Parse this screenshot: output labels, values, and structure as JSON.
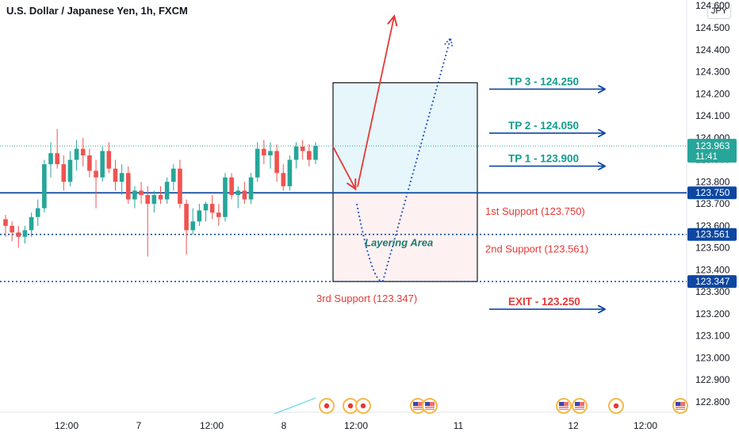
{
  "header": {
    "title": "U.S. Dollar / Japanese Yen, 1h, FXCM",
    "currency_button": "JPY"
  },
  "colors": {
    "bull": "#26a69a",
    "bear": "#ef5350",
    "blue": "#0d47a1",
    "red_text": "#e53935",
    "teal_text": "#139c8f"
  },
  "chart_data": {
    "type": "candlestick",
    "symbol": "USDJPY",
    "timeframe": "1h",
    "ylim": [
      122.75,
      124.6
    ],
    "y_ticks": [
      "124.600",
      "124.500",
      "124.400",
      "124.300",
      "124.200",
      "124.100",
      "124.000",
      "123.900",
      "123.800",
      "123.700",
      "123.600",
      "123.500",
      "123.400",
      "123.300",
      "123.200",
      "123.100",
      "123.000",
      "122.900",
      "122.800"
    ],
    "x_ticks": [
      "12:00",
      "7",
      "12:00",
      "8",
      "12:00",
      "11",
      "12",
      "12:00"
    ],
    "candles": [
      {
        "o": 123.63,
        "h": 123.65,
        "l": 123.55,
        "c": 123.6
      },
      {
        "o": 123.6,
        "h": 123.62,
        "l": 123.53,
        "c": 123.57
      },
      {
        "o": 123.57,
        "h": 123.6,
        "l": 123.5,
        "c": 123.55
      },
      {
        "o": 123.55,
        "h": 123.6,
        "l": 123.52,
        "c": 123.58
      },
      {
        "o": 123.58,
        "h": 123.66,
        "l": 123.55,
        "c": 123.64
      },
      {
        "o": 123.64,
        "h": 123.72,
        "l": 123.6,
        "c": 123.68
      },
      {
        "o": 123.68,
        "h": 123.9,
        "l": 123.66,
        "c": 123.88
      },
      {
        "o": 123.88,
        "h": 123.98,
        "l": 123.82,
        "c": 123.93
      },
      {
        "o": 123.93,
        "h": 124.04,
        "l": 123.86,
        "c": 123.88
      },
      {
        "o": 123.88,
        "h": 123.92,
        "l": 123.76,
        "c": 123.8
      },
      {
        "o": 123.8,
        "h": 123.94,
        "l": 123.78,
        "c": 123.9
      },
      {
        "o": 123.9,
        "h": 123.99,
        "l": 123.85,
        "c": 123.95
      },
      {
        "o": 123.95,
        "h": 124.0,
        "l": 123.87,
        "c": 123.92
      },
      {
        "o": 123.92,
        "h": 123.95,
        "l": 123.82,
        "c": 123.85
      },
      {
        "o": 123.85,
        "h": 123.9,
        "l": 123.68,
        "c": 123.82
      },
      {
        "o": 123.82,
        "h": 123.96,
        "l": 123.8,
        "c": 123.94
      },
      {
        "o": 123.94,
        "h": 123.98,
        "l": 123.84,
        "c": 123.86
      },
      {
        "o": 123.86,
        "h": 123.9,
        "l": 123.76,
        "c": 123.8
      },
      {
        "o": 123.8,
        "h": 123.88,
        "l": 123.74,
        "c": 123.84
      },
      {
        "o": 123.84,
        "h": 123.87,
        "l": 123.7,
        "c": 123.72
      },
      {
        "o": 123.72,
        "h": 123.78,
        "l": 123.68,
        "c": 123.76
      },
      {
        "o": 123.76,
        "h": 123.8,
        "l": 123.7,
        "c": 123.74
      },
      {
        "o": 123.74,
        "h": 123.78,
        "l": 123.46,
        "c": 123.7
      },
      {
        "o": 123.7,
        "h": 123.76,
        "l": 123.66,
        "c": 123.74
      },
      {
        "o": 123.74,
        "h": 123.78,
        "l": 123.7,
        "c": 123.72
      },
      {
        "o": 123.72,
        "h": 123.82,
        "l": 123.7,
        "c": 123.8
      },
      {
        "o": 123.8,
        "h": 123.88,
        "l": 123.76,
        "c": 123.86
      },
      {
        "o": 123.86,
        "h": 123.9,
        "l": 123.68,
        "c": 123.7
      },
      {
        "o": 123.7,
        "h": 123.72,
        "l": 123.47,
        "c": 123.58
      },
      {
        "o": 123.58,
        "h": 123.68,
        "l": 123.56,
        "c": 123.62
      },
      {
        "o": 123.62,
        "h": 123.7,
        "l": 123.6,
        "c": 123.67
      },
      {
        "o": 123.67,
        "h": 123.71,
        "l": 123.62,
        "c": 123.7
      },
      {
        "o": 123.7,
        "h": 123.74,
        "l": 123.63,
        "c": 123.66
      },
      {
        "o": 123.66,
        "h": 123.7,
        "l": 123.6,
        "c": 123.64
      },
      {
        "o": 123.64,
        "h": 123.84,
        "l": 123.62,
        "c": 123.82
      },
      {
        "o": 123.82,
        "h": 123.84,
        "l": 123.72,
        "c": 123.74
      },
      {
        "o": 123.74,
        "h": 123.78,
        "l": 123.68,
        "c": 123.76
      },
      {
        "o": 123.76,
        "h": 123.8,
        "l": 123.7,
        "c": 123.72
      },
      {
        "o": 123.72,
        "h": 123.84,
        "l": 123.7,
        "c": 123.82
      },
      {
        "o": 123.82,
        "h": 123.98,
        "l": 123.8,
        "c": 123.95
      },
      {
        "o": 123.95,
        "h": 123.99,
        "l": 123.88,
        "c": 123.92
      },
      {
        "o": 123.92,
        "h": 123.98,
        "l": 123.86,
        "c": 123.94
      },
      {
        "o": 123.94,
        "h": 123.97,
        "l": 123.8,
        "c": 123.84
      },
      {
        "o": 123.84,
        "h": 123.88,
        "l": 123.76,
        "c": 123.78
      },
      {
        "o": 123.78,
        "h": 123.92,
        "l": 123.76,
        "c": 123.9
      },
      {
        "o": 123.9,
        "h": 123.98,
        "l": 123.86,
        "c": 123.96
      },
      {
        "o": 123.96,
        "h": 123.99,
        "l": 123.9,
        "c": 123.94
      },
      {
        "o": 123.94,
        "h": 123.97,
        "l": 123.87,
        "c": 123.9
      },
      {
        "o": 123.9,
        "h": 123.98,
        "l": 123.88,
        "c": 123.963
      }
    ],
    "levels": [
      {
        "name": "1st Support",
        "price": 123.75,
        "style": "solid",
        "axis_label": "123.750"
      },
      {
        "name": "2nd Support",
        "price": 123.561,
        "style": "dotted",
        "axis_label": "123.561"
      },
      {
        "name": "3rd Support",
        "price": 123.347,
        "style": "dotted",
        "axis_label": "123.347"
      }
    ],
    "current_price": {
      "label": "123.963",
      "countdown": "11:41",
      "value": 123.963
    },
    "zone": {
      "top": 124.25,
      "mid": 123.75,
      "bottom": 123.347
    },
    "annotations": {
      "tp3": "TP 3 - 124.250",
      "tp2": "TP 2 - 124.050",
      "tp1": "TP 1 - 123.900",
      "exit": "EXIT - 123.250",
      "support1": "1st Support (123.750)",
      "support2": "2nd Support (123.561)",
      "support3": "3rd Support (123.347)",
      "layering": "Layering Area"
    },
    "targets": {
      "tp3": 124.25,
      "tp2": 124.05,
      "tp1": 123.9,
      "exit": 123.25
    },
    "red_path": {
      "down_from": 123.96,
      "down_to": 123.77,
      "up_to": 124.55
    },
    "blue_path": {
      "from": 123.7,
      "bottom": 123.35,
      "to": 124.45
    },
    "event_icons": [
      "jp",
      "jp",
      "jp",
      "us",
      "us",
      "us",
      "us",
      "jp",
      "us"
    ]
  }
}
